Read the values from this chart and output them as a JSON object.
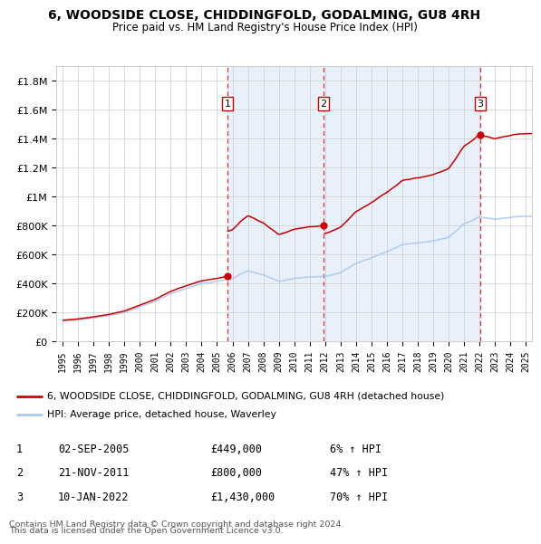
{
  "title1": "6, WOODSIDE CLOSE, CHIDDINGFOLD, GODALMING, GU8 4RH",
  "title2": "Price paid vs. HM Land Registry's House Price Index (HPI)",
  "legend_label_red": "6, WOODSIDE CLOSE, CHIDDINGFOLD, GODALMING, GU8 4RH (detached house)",
  "legend_label_blue": "HPI: Average price, detached house, Waverley",
  "footer1": "Contains HM Land Registry data © Crown copyright and database right 2024.",
  "footer2": "This data is licensed under the Open Government Licence v3.0.",
  "transactions": [
    {
      "num": 1,
      "date": "02-SEP-2005",
      "price": 449000,
      "pct": "6% ↑ HPI",
      "year_f": 2005.67
    },
    {
      "num": 2,
      "date": "21-NOV-2011",
      "price": 800000,
      "pct": "47% ↑ HPI",
      "year_f": 2011.89
    },
    {
      "num": 3,
      "date": "10-JAN-2022",
      "price": 1430000,
      "pct": "70% ↑ HPI",
      "year_f": 2022.04
    }
  ],
  "hpi_color": "#aac8f0",
  "price_color": "#cc0000",
  "shading_color": "#ddeeff",
  "yticks": [
    0,
    200000,
    400000,
    600000,
    800000,
    1000000,
    1200000,
    1400000,
    1600000,
    1800000
  ],
  "ylabels": [
    "£0",
    "£200K",
    "£400K",
    "£600K",
    "£800K",
    "£1M",
    "£1.2M",
    "£1.4M",
    "£1.6M",
    "£1.8M"
  ],
  "xmin": 1994.6,
  "xmax": 2025.4,
  "ymin": 0,
  "ymax": 1900000
}
